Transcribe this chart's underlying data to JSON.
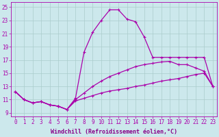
{
  "background_color": "#cce8ec",
  "grid_color": "#aacccc",
  "line_color": "#aa00aa",
  "xlabel": "Windchill (Refroidissement éolien,°C)",
  "xlabel_color": "#880088",
  "xlim": [
    -0.5,
    23.5
  ],
  "ylim": [
    8.5,
    25.8
  ],
  "yticks": [
    9,
    11,
    13,
    15,
    17,
    19,
    21,
    23,
    25
  ],
  "xticks": [
    0,
    1,
    2,
    3,
    4,
    5,
    6,
    7,
    8,
    9,
    10,
    11,
    12,
    13,
    14,
    15,
    16,
    17,
    18,
    19,
    20,
    21,
    22,
    23
  ],
  "series1_x": [
    0,
    1,
    2,
    3,
    4,
    5,
    6,
    7,
    8,
    9,
    10,
    11,
    12,
    13,
    14,
    15,
    16,
    17,
    18,
    19,
    20,
    21,
    22,
    23
  ],
  "series1_y": [
    12.2,
    11.0,
    10.5,
    10.7,
    10.2,
    10.0,
    9.5,
    11.2,
    18.2,
    21.2,
    23.0,
    24.6,
    24.6,
    23.2,
    22.8,
    20.5,
    17.4,
    17.4,
    17.4,
    17.4,
    17.4,
    17.4,
    17.4,
    13.0
  ],
  "series2_x": [
    0,
    1,
    2,
    3,
    4,
    5,
    6,
    7,
    8,
    9,
    10,
    11,
    12,
    13,
    14,
    15,
    16,
    17,
    18,
    19,
    20,
    21,
    22,
    23
  ],
  "series2_y": [
    12.2,
    11.0,
    10.5,
    10.7,
    10.2,
    10.0,
    9.5,
    11.0,
    12.0,
    13.0,
    13.8,
    14.5,
    15.0,
    15.5,
    16.0,
    16.3,
    16.5,
    16.7,
    16.8,
    16.3,
    16.3,
    15.8,
    15.3,
    13.0
  ],
  "series3_x": [
    0,
    1,
    2,
    3,
    4,
    5,
    6,
    7,
    8,
    9,
    10,
    11,
    12,
    13,
    14,
    15,
    16,
    17,
    18,
    19,
    20,
    21,
    22,
    23
  ],
  "series3_y": [
    12.2,
    11.0,
    10.5,
    10.7,
    10.2,
    10.0,
    9.5,
    10.8,
    11.2,
    11.6,
    12.0,
    12.3,
    12.5,
    12.7,
    13.0,
    13.2,
    13.5,
    13.8,
    14.0,
    14.2,
    14.5,
    14.8,
    15.0,
    13.0
  ],
  "marker": "+",
  "marker_size": 3,
  "linewidth": 0.9,
  "tick_fontsize": 5.5,
  "label_fontsize": 6.0
}
